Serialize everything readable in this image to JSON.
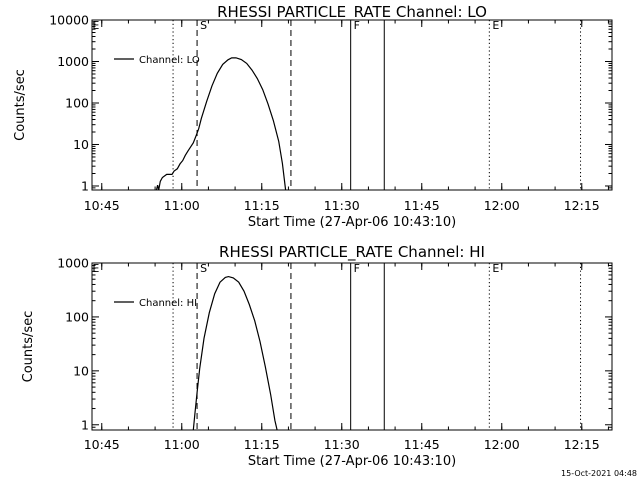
{
  "footer": {
    "timestamp": "15-Oct-2021 04:48"
  },
  "panels": [
    {
      "title": "RHESSI PARTICLE_RATE Channel: LO",
      "legend": "Channel: LO",
      "xlabel": "Start Time (27-Apr-06 10:43:10)",
      "ylabel": "Counts/sec",
      "x_tick_labels": [
        "10:45",
        "11:00",
        "11:15",
        "11:30",
        "11:45",
        "12:00",
        "12:15"
      ],
      "y_tick_labels": [
        "1",
        "10",
        "100",
        "1000",
        "10000"
      ]
    },
    {
      "title": "RHESSI PARTICLE_RATE Channel: HI",
      "legend": "Channel: HI",
      "xlabel": "Start Time (27-Apr-06 10:43:10)",
      "ylabel": "Counts/sec",
      "x_tick_labels": [
        "10:45",
        "11:00",
        "11:15",
        "11:30",
        "11:45",
        "12:00",
        "12:15"
      ],
      "y_tick_labels": [
        "1",
        "10",
        "100",
        "1000"
      ]
    }
  ],
  "chart_data": [
    {
      "type": "line",
      "title": "RHESSI PARTICLE_RATE Channel: LO",
      "xlabel": "Start Time (27-Apr-06 10:43:10)",
      "ylabel": "Counts/sec",
      "y_scale": "log",
      "xlim_minutes": [
        0,
        97.5
      ],
      "ylim": [
        0.8,
        10000
      ],
      "x_ticks_minutes": [
        1.83,
        16.83,
        31.83,
        46.83,
        61.83,
        76.83,
        91.83
      ],
      "x_tick_labels": [
        "10:45",
        "11:00",
        "11:15",
        "11:30",
        "11:45",
        "12:00",
        "12:15"
      ],
      "y_ticks": [
        1,
        10,
        100,
        1000,
        10000
      ],
      "legend_position": "top-left",
      "event_markers": [
        {
          "label": "E",
          "style": "dotted",
          "minute": -0.5
        },
        {
          "label": "",
          "style": "dotted",
          "minute": 15.2
        },
        {
          "label": "S",
          "style": "dashed",
          "minute": 19.7
        },
        {
          "label": "",
          "style": "dashed",
          "minute": 37.3
        },
        {
          "label": "F",
          "style": "solid",
          "minute": 48.5
        },
        {
          "label": "",
          "style": "solid",
          "minute": 54.8
        },
        {
          "label": "E",
          "style": "dotted",
          "minute": 74.5
        },
        {
          "label": "",
          "style": "dotted",
          "minute": 91.6
        }
      ],
      "series": [
        {
          "name": "Channel: LO",
          "points": [
            [
              12.1,
              0.8
            ],
            [
              12.3,
              1.05
            ],
            [
              12.5,
              0.8
            ],
            [
              12.8,
              1.3
            ],
            [
              13.2,
              1.6
            ],
            [
              14.0,
              1.9
            ],
            [
              15.0,
              1.9
            ],
            [
              15.4,
              2.3
            ],
            [
              16.0,
              2.6
            ],
            [
              16.5,
              3.4
            ],
            [
              17.0,
              4.1
            ],
            [
              17.5,
              5.5
            ],
            [
              18.0,
              7.0
            ],
            [
              18.5,
              8.8
            ],
            [
              19.0,
              11
            ],
            [
              19.5,
              16
            ],
            [
              20.0,
              24
            ],
            [
              20.5,
              42
            ],
            [
              21.5,
              110
            ],
            [
              22.5,
              260
            ],
            [
              23.5,
              520
            ],
            [
              24.5,
              850
            ],
            [
              25.5,
              1100
            ],
            [
              26.2,
              1220
            ],
            [
              27.0,
              1230
            ],
            [
              28.0,
              1120
            ],
            [
              29.0,
              900
            ],
            [
              30.0,
              620
            ],
            [
              31.0,
              390
            ],
            [
              32.0,
              210
            ],
            [
              33.0,
              95
            ],
            [
              34.0,
              38
            ],
            [
              35.0,
              12
            ],
            [
              35.7,
              3.5
            ],
            [
              36.3,
              0.8
            ]
          ]
        }
      ]
    },
    {
      "type": "line",
      "title": "RHESSI PARTICLE_RATE Channel: HI",
      "xlabel": "Start Time (27-Apr-06 10:43:10)",
      "ylabel": "Counts/sec",
      "y_scale": "log",
      "xlim_minutes": [
        0,
        97.5
      ],
      "ylim": [
        0.8,
        1000
      ],
      "x_ticks_minutes": [
        1.83,
        16.83,
        31.83,
        46.83,
        61.83,
        76.83,
        91.83
      ],
      "x_tick_labels": [
        "10:45",
        "11:00",
        "11:15",
        "11:30",
        "11:45",
        "12:00",
        "12:15"
      ],
      "y_ticks": [
        1,
        10,
        100,
        1000
      ],
      "legend_position": "top-left",
      "event_markers": [
        {
          "label": "E",
          "style": "dotted",
          "minute": -0.5
        },
        {
          "label": "",
          "style": "dotted",
          "minute": 15.2
        },
        {
          "label": "S",
          "style": "dashed",
          "minute": 19.7
        },
        {
          "label": "",
          "style": "dashed",
          "minute": 37.3
        },
        {
          "label": "F",
          "style": "solid",
          "minute": 48.5
        },
        {
          "label": "",
          "style": "solid",
          "minute": 54.8
        },
        {
          "label": "E",
          "style": "dotted",
          "minute": 74.5
        },
        {
          "label": "",
          "style": "dotted",
          "minute": 91.6
        }
      ],
      "series": [
        {
          "name": "Channel: HI",
          "points": [
            [
              19.0,
              0.8
            ],
            [
              19.3,
              1.6
            ],
            [
              19.7,
              4
            ],
            [
              20.2,
              11
            ],
            [
              21.0,
              40
            ],
            [
              22.0,
              120
            ],
            [
              23.0,
              270
            ],
            [
              24.0,
              440
            ],
            [
              25.0,
              540
            ],
            [
              25.6,
              560
            ],
            [
              26.5,
              530
            ],
            [
              27.5,
              440
            ],
            [
              28.5,
              300
            ],
            [
              29.5,
              170
            ],
            [
              30.5,
              85
            ],
            [
              31.5,
              35
            ],
            [
              32.5,
              12
            ],
            [
              33.5,
              3.6
            ],
            [
              34.3,
              1.2
            ],
            [
              34.7,
              0.8
            ]
          ]
        }
      ]
    }
  ]
}
